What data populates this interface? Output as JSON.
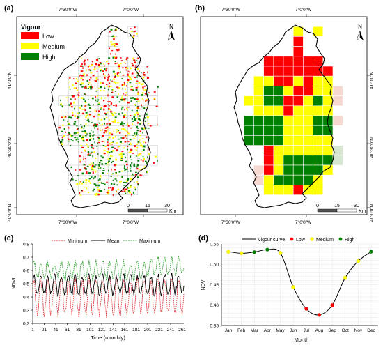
{
  "panels": {
    "a": {
      "label": "(a)",
      "legend_title": "Vigour",
      "legend": [
        {
          "name": "Low",
          "color": "#ff0000"
        },
        {
          "name": "Medium",
          "color": "#ffff00"
        },
        {
          "name": "High",
          "color": "#008000"
        }
      ]
    },
    "b": {
      "label": "(b)"
    },
    "c": {
      "label": "(c)"
    },
    "d": {
      "label": "(d)"
    }
  },
  "map_coords": {
    "lon_left": "7°30'0\"W",
    "lon_right": "7°0'0\"W",
    "lat_top": "41°0'0\"N",
    "lat_mid": "40°30'0\"N",
    "lat_bottom": "40°0'0\"N"
  },
  "north_label": "N",
  "scalebar": {
    "ticks": [
      "0",
      "15",
      "30"
    ],
    "unit": "Km"
  },
  "colors": {
    "low": "#ff0000",
    "medium": "#ffff00",
    "high": "#008000",
    "minimum": "#e03030",
    "mean": "#000000",
    "maximum": "#30a030"
  },
  "grid_b": [
    "...........",
    "......M.M..",
    "......L....",
    "......L....",
    "...LLLLLL..",
    "...LLLLLLL.",
    "..MMLLMLMM.",
    "..MHHMLLMMp",
    ".MMHHLLMHMp",
    "..MMMLMMMM.",
    ".HHHHMMMHHp",
    ".HHHHMMMHH.",
    ".HHHHMMMMM.",
    "...LMMMMMMg",
    "...LMHHHHHg",
    "..pLMHHHHM.",
    "..pMHHHHM..",
    "...MMMLMM..",
    "...........",
    "..........."
  ],
  "chart_c": {
    "type": "line",
    "xlabel": "Time (monthly)",
    "ylabel": "NDVI",
    "x_ticks": [
      "1",
      "21",
      "41",
      "61",
      "81",
      "101",
      "121",
      "141",
      "161",
      "181",
      "201",
      "221",
      "241",
      "261"
    ],
    "y_ticks": [
      "0.2",
      "0.3",
      "0.4",
      "0.5",
      "0.6",
      "0.7",
      "0.8"
    ],
    "ylim": [
      0.2,
      0.8
    ],
    "xlim": [
      1,
      264
    ],
    "series": [
      {
        "name": "Minimum"
      },
      {
        "name": "Mean"
      },
      {
        "name": "Maximum"
      }
    ]
  },
  "chart_data": {
    "type": "line",
    "title": "",
    "xlabel": "Month",
    "ylabel": "NDVI",
    "categories": [
      "Jan",
      "Feb",
      "Mar",
      "Apr",
      "May",
      "Jun",
      "Jul",
      "Aug",
      "Sep",
      "Oct",
      "Nov",
      "Dec"
    ],
    "ylim": [
      0.35,
      0.55
    ],
    "y_ticks": [
      "0.35",
      "0.40",
      "0.45",
      "0.50",
      "0.55"
    ],
    "series": [
      {
        "name": "Vigour curve",
        "values": [
          0.531,
          0.527,
          0.53,
          0.536,
          0.528,
          0.444,
          0.391,
          0.376,
          0.4,
          0.467,
          0.508,
          0.531
        ]
      }
    ],
    "points": [
      {
        "category": "Jan",
        "value": 0.531,
        "class": "Medium"
      },
      {
        "category": "Feb",
        "value": 0.527,
        "class": "Medium"
      },
      {
        "category": "Mar",
        "value": 0.53,
        "class": "High"
      },
      {
        "category": "Apr",
        "value": 0.536,
        "class": "High"
      },
      {
        "category": "May",
        "value": 0.528,
        "class": "Medium"
      },
      {
        "category": "Jun",
        "value": 0.444,
        "class": "Medium"
      },
      {
        "category": "Jul",
        "value": 0.391,
        "class": "Low"
      },
      {
        "category": "Aug",
        "value": 0.376,
        "class": "Low"
      },
      {
        "category": "Sep",
        "value": 0.4,
        "class": "Low"
      },
      {
        "category": "Oct",
        "value": 0.467,
        "class": "Medium"
      },
      {
        "category": "Nov",
        "value": 0.508,
        "class": "Medium"
      },
      {
        "category": "Dec",
        "value": 0.531,
        "class": "High"
      }
    ],
    "legend": [
      {
        "name": "Vigour curve"
      },
      {
        "name": "Low"
      },
      {
        "name": "Medium"
      },
      {
        "name": "High"
      }
    ]
  }
}
